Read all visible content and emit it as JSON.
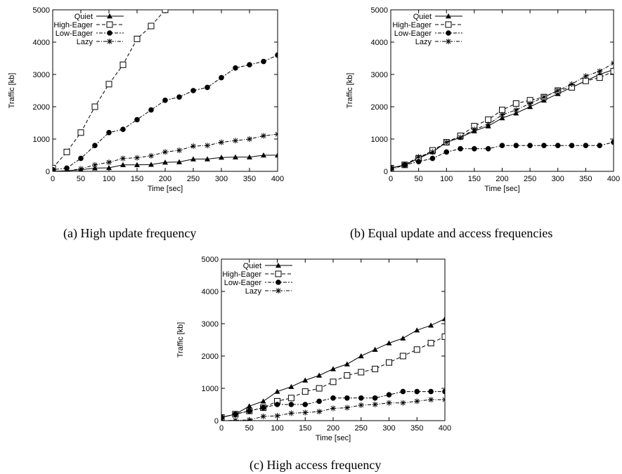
{
  "chart_data": [
    {
      "type": "line",
      "caption": "(a) High update frequency",
      "xlabel": "Time [sec]",
      "ylabel": "Traffic [kb]",
      "xlim": [
        0,
        400
      ],
      "ylim": [
        0,
        5000
      ],
      "xticks": [
        0,
        50,
        100,
        150,
        200,
        250,
        300,
        350,
        400
      ],
      "yticks": [
        0,
        1000,
        2000,
        3000,
        4000,
        5000
      ],
      "legend_position": "top-left",
      "series": [
        {
          "name": "Quiet",
          "marker": "triangle",
          "dash": "solid",
          "x": [
            0,
            25,
            50,
            75,
            100,
            125,
            150,
            175,
            200,
            225,
            250,
            275,
            300,
            325,
            350,
            375,
            400
          ],
          "y": [
            0,
            20,
            50,
            100,
            110,
            200,
            200,
            210,
            280,
            290,
            380,
            380,
            430,
            440,
            440,
            500,
            500
          ]
        },
        {
          "name": "High-Eager",
          "marker": "open-square",
          "dash": "dashed",
          "x": [
            0,
            25,
            50,
            75,
            100,
            125,
            150,
            175,
            200
          ],
          "y": [
            100,
            600,
            1200,
            2000,
            2700,
            3300,
            4100,
            4500,
            5000
          ]
        },
        {
          "name": "Low-Eager",
          "marker": "filled-circle",
          "dash": "dotdash",
          "x": [
            0,
            25,
            50,
            75,
            100,
            125,
            150,
            175,
            200,
            225,
            250,
            275,
            300,
            325,
            350,
            375,
            400
          ],
          "y": [
            50,
            100,
            400,
            800,
            1200,
            1300,
            1600,
            1900,
            2200,
            2300,
            2500,
            2600,
            2900,
            3200,
            3300,
            3400,
            3600
          ]
        },
        {
          "name": "Lazy",
          "marker": "asterisk",
          "dash": "dashdot",
          "x": [
            0,
            25,
            50,
            75,
            100,
            125,
            150,
            175,
            200,
            225,
            250,
            275,
            300,
            325,
            350,
            375,
            400
          ],
          "y": [
            0,
            10,
            80,
            200,
            280,
            400,
            420,
            480,
            600,
            650,
            780,
            800,
            900,
            950,
            1000,
            1100,
            1150
          ]
        }
      ]
    },
    {
      "type": "line",
      "caption": "(b) Equal update and access frequencies",
      "xlabel": "Time [sec]",
      "ylabel": "Traffic [kb]",
      "xlim": [
        0,
        400
      ],
      "ylim": [
        0,
        5000
      ],
      "xticks": [
        0,
        50,
        100,
        150,
        200,
        250,
        300,
        350,
        400
      ],
      "yticks": [
        0,
        1000,
        2000,
        3000,
        4000,
        5000
      ],
      "legend_position": "top-left",
      "series": [
        {
          "name": "Quiet",
          "marker": "triangle",
          "dash": "solid",
          "x": [
            0,
            25,
            50,
            75,
            100,
            125,
            150,
            175,
            200,
            225,
            250,
            275,
            300,
            325,
            350,
            375,
            400
          ],
          "y": [
            100,
            200,
            400,
            600,
            900,
            1050,
            1250,
            1400,
            1650,
            1800,
            2000,
            2200,
            2400,
            2600,
            2800,
            3000,
            3150
          ]
        },
        {
          "name": "High-Eager",
          "marker": "open-square",
          "dash": "dashed",
          "x": [
            0,
            25,
            50,
            75,
            100,
            125,
            150,
            175,
            200,
            225,
            250,
            275,
            300,
            325,
            350,
            375,
            400
          ],
          "y": [
            100,
            200,
            400,
            650,
            900,
            1100,
            1400,
            1600,
            1900,
            2100,
            2200,
            2300,
            2500,
            2600,
            2800,
            2900,
            3100
          ]
        },
        {
          "name": "Low-Eager",
          "marker": "filled-circle",
          "dash": "dotdash",
          "x": [
            0,
            25,
            50,
            75,
            100,
            125,
            150,
            175,
            200,
            225,
            250,
            275,
            300,
            325,
            350,
            375,
            400
          ],
          "y": [
            100,
            200,
            300,
            400,
            600,
            700,
            700,
            700,
            800,
            800,
            800,
            800,
            800,
            800,
            800,
            800,
            900
          ]
        },
        {
          "name": "Lazy",
          "marker": "asterisk",
          "dash": "dashdot",
          "x": [
            0,
            25,
            50,
            75,
            100,
            125,
            150,
            175,
            200,
            225,
            250,
            275,
            300,
            325,
            350,
            375,
            400
          ],
          "y": [
            50,
            200,
            450,
            600,
            900,
            1050,
            1300,
            1450,
            1750,
            1900,
            2100,
            2300,
            2500,
            2700,
            2950,
            3100,
            3350
          ]
        }
      ]
    },
    {
      "type": "line",
      "caption": "(c) High access frequency",
      "xlabel": "Time [sec]",
      "ylabel": "Traffic [kb]",
      "xlim": [
        0,
        400
      ],
      "ylim": [
        0,
        5000
      ],
      "xticks": [
        0,
        50,
        100,
        150,
        200,
        250,
        300,
        350,
        400
      ],
      "yticks": [
        0,
        1000,
        2000,
        3000,
        4000,
        5000
      ],
      "legend_position": "top-left",
      "series": [
        {
          "name": "Quiet",
          "marker": "triangle",
          "dash": "solid",
          "x": [
            0,
            25,
            50,
            75,
            100,
            125,
            150,
            175,
            200,
            225,
            250,
            275,
            300,
            325,
            350,
            375,
            400
          ],
          "y": [
            100,
            200,
            450,
            600,
            900,
            1050,
            1250,
            1400,
            1600,
            1750,
            2000,
            2200,
            2400,
            2550,
            2800,
            2950,
            3150
          ]
        },
        {
          "name": "High-Eager",
          "marker": "open-square",
          "dash": "dashed",
          "x": [
            0,
            25,
            50,
            75,
            100,
            125,
            150,
            175,
            200,
            225,
            250,
            275,
            300,
            325,
            350,
            375,
            400
          ],
          "y": [
            100,
            200,
            300,
            400,
            600,
            700,
            900,
            1000,
            1200,
            1400,
            1500,
            1600,
            1800,
            2000,
            2200,
            2400,
            2600
          ]
        },
        {
          "name": "Low-Eager",
          "marker": "filled-circle",
          "dash": "dotdash",
          "x": [
            0,
            25,
            50,
            75,
            100,
            125,
            150,
            175,
            200,
            225,
            250,
            275,
            300,
            325,
            350,
            375,
            400
          ],
          "y": [
            100,
            200,
            300,
            400,
            500,
            500,
            500,
            600,
            700,
            700,
            700,
            700,
            800,
            900,
            900,
            900,
            900
          ]
        },
        {
          "name": "Lazy",
          "marker": "asterisk",
          "dash": "dashdot",
          "x": [
            0,
            25,
            50,
            75,
            100,
            125,
            150,
            175,
            200,
            225,
            250,
            275,
            300,
            325,
            350,
            375,
            400
          ],
          "y": [
            0,
            10,
            20,
            130,
            150,
            230,
            250,
            280,
            380,
            400,
            480,
            500,
            550,
            550,
            600,
            650,
            650
          ]
        }
      ]
    }
  ]
}
